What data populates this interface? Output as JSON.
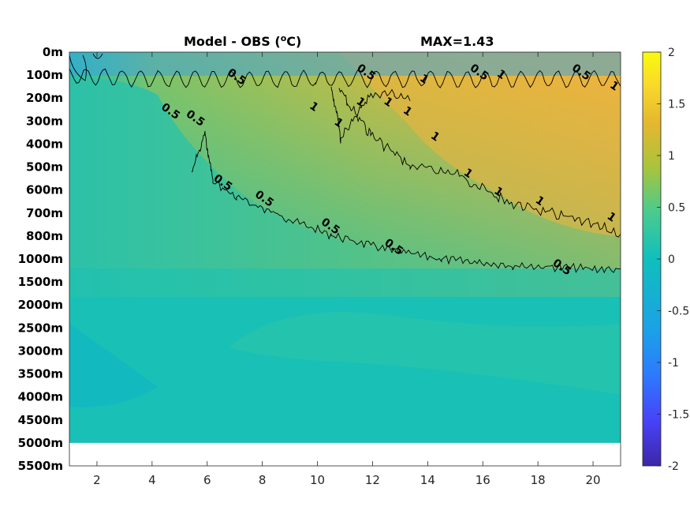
{
  "chart_data": {
    "type": "heatmap",
    "title": "Model - OBS (",
    "title_unit_sup": "o",
    "title_unit_tail": "C)",
    "annotation": "MAX=1.43",
    "xlabel": "",
    "ylabel": "",
    "x_range": [
      1,
      21
    ],
    "x_ticks": [
      "2",
      "4",
      "6",
      "8",
      "10",
      "12",
      "14",
      "16",
      "18",
      "20"
    ],
    "x_tick_values": [
      2,
      4,
      6,
      8,
      10,
      12,
      14,
      16,
      18,
      20
    ],
    "y_ticks": [
      "0m",
      "100m",
      "200m",
      "300m",
      "400m",
      "500m",
      "600m",
      "700m",
      "800m",
      "1000m",
      "1500m",
      "2000m",
      "2500m",
      "3000m",
      "3500m",
      "4000m",
      "4500m",
      "5000m",
      "5500m"
    ],
    "y_tick_depths": [
      0,
      100,
      200,
      300,
      400,
      500,
      600,
      700,
      800,
      1000,
      1500,
      2000,
      2500,
      3000,
      3500,
      4000,
      4500,
      5000,
      5500
    ],
    "data_max_depth": 5000,
    "colorbar": {
      "range": [
        -2,
        2
      ],
      "ticks": [
        "2",
        "1.5",
        "1",
        "0.5",
        "0",
        "-0.5",
        "-1",
        "-1.5",
        "-2"
      ],
      "tick_values": [
        2,
        1.5,
        1,
        0.5,
        0,
        -0.5,
        -1,
        -1.5,
        -2
      ],
      "colormap": [
        "#3e26a8",
        "#4743f8",
        "#2d7afe",
        "#1ba2e6",
        "#10bfbc",
        "#4ecb8b",
        "#a8c43c",
        "#e6b72f",
        "#f9d92a",
        "#f9fb0e"
      ]
    },
    "contour_levels": [
      0.5,
      1
    ],
    "contour_labels": [
      {
        "text": "0.5",
        "x": 4.6,
        "depth": 270
      },
      {
        "text": "0.5",
        "x": 5.5,
        "depth": 300
      },
      {
        "text": "0.5",
        "x": 6.5,
        "depth": 580
      },
      {
        "text": "0.5",
        "x": 8.0,
        "depth": 650
      },
      {
        "text": "0.5",
        "x": 7.0,
        "depth": 120
      },
      {
        "text": "0.5",
        "x": 10.4,
        "depth": 770
      },
      {
        "text": "0.5",
        "x": 12.7,
        "depth": 920
      },
      {
        "text": "0.5",
        "x": 11.7,
        "depth": 100
      },
      {
        "text": "0.5",
        "x": 15.8,
        "depth": 100
      },
      {
        "text": "0.5",
        "x": 19.5,
        "depth": 100
      },
      {
        "text": "0.5",
        "x": 18.8,
        "depth": 1240
      },
      {
        "text": "1",
        "x": 9.8,
        "depth": 250
      },
      {
        "text": "1",
        "x": 10.7,
        "depth": 320
      },
      {
        "text": "1",
        "x": 11.5,
        "depth": 230
      },
      {
        "text": "1",
        "x": 12.5,
        "depth": 230
      },
      {
        "text": "1",
        "x": 13.2,
        "depth": 270
      },
      {
        "text": "1",
        "x": 13.8,
        "depth": 130
      },
      {
        "text": "1",
        "x": 14.2,
        "depth": 380
      },
      {
        "text": "1",
        "x": 16.6,
        "depth": 110
      },
      {
        "text": "1",
        "x": 15.4,
        "depth": 540
      },
      {
        "text": "1",
        "x": 16.5,
        "depth": 620
      },
      {
        "text": "1",
        "x": 18.0,
        "depth": 660
      },
      {
        "text": "1",
        "x": 20.7,
        "depth": 160
      },
      {
        "text": "1",
        "x": 20.6,
        "depth": 730
      }
    ]
  }
}
